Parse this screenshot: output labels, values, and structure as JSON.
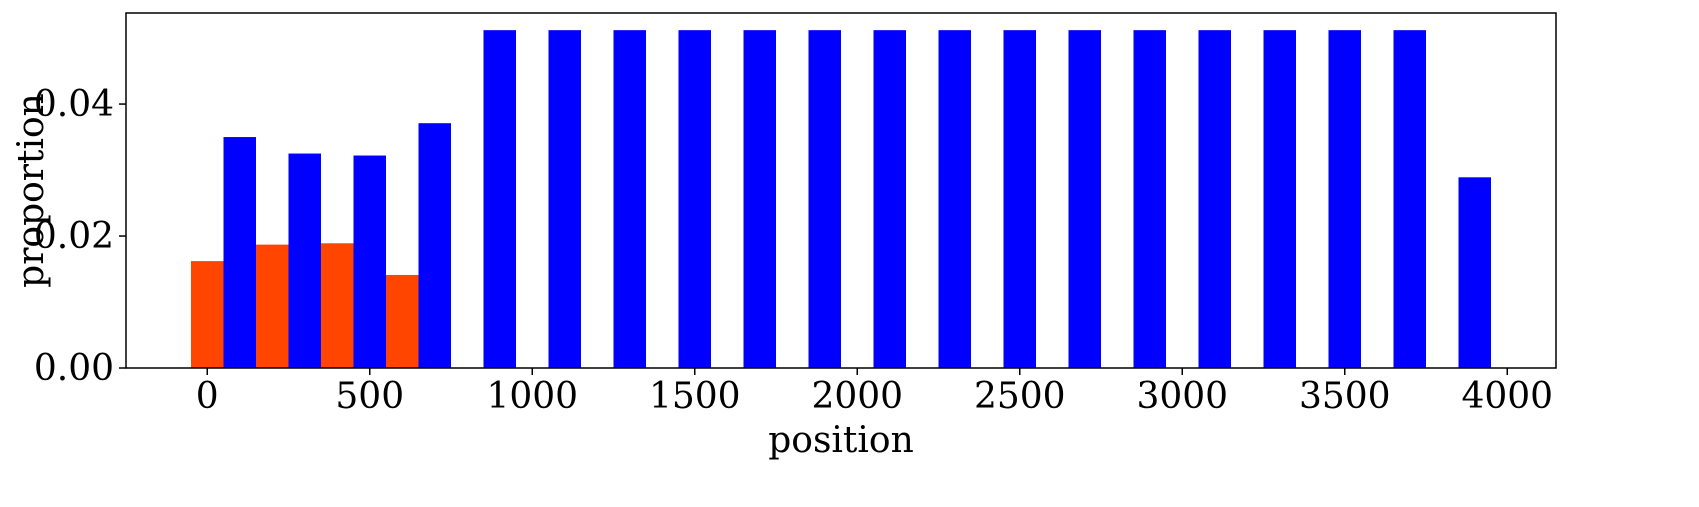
{
  "chart_data": {
    "type": "bar",
    "xlabel": "position",
    "ylabel": "proportion",
    "xlim": [
      -250,
      4150
    ],
    "ylim": [
      0,
      0.0538
    ],
    "xticks": [
      0,
      500,
      1000,
      1500,
      2000,
      2500,
      3000,
      3500,
      4000
    ],
    "yticks": [
      0.0,
      0.02,
      0.04
    ],
    "ytick_labels": [
      "0.00",
      "0.02",
      "0.04"
    ],
    "bar_width": 100,
    "grid": false,
    "series": [
      {
        "color": "#ff4500",
        "x": [
          0,
          200,
          400,
          600
        ],
        "values": [
          0.0162,
          0.0187,
          0.0189,
          0.0141
        ]
      },
      {
        "color": "#0000ff",
        "x": [
          100,
          300,
          500,
          700,
          900,
          1100,
          1300,
          1500,
          1700,
          1900,
          2100,
          2300,
          2500,
          2700,
          2900,
          3100,
          3300,
          3500,
          3700,
          3900
        ],
        "values": [
          0.035,
          0.0325,
          0.0322,
          0.0371,
          0.0512,
          0.0512,
          0.0512,
          0.0512,
          0.0512,
          0.0512,
          0.0512,
          0.0512,
          0.0512,
          0.0512,
          0.0512,
          0.0512,
          0.0512,
          0.0512,
          0.0512,
          0.0289
        ]
      }
    ]
  }
}
